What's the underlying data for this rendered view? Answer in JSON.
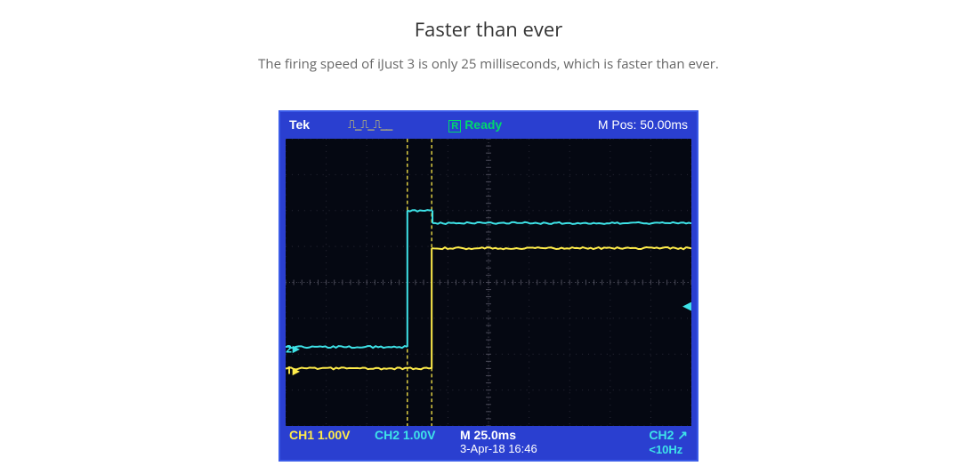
{
  "heading": "Faster than ever",
  "subtext": "The firing speed of iJust 3 is only 25 milliseconds, which is faster than ever.",
  "scope": {
    "brand": "Tek",
    "wave_glyph": "⎍_⎍_⎍__",
    "ready_r": "R",
    "ready_text": "Ready",
    "mpos": "M Pos: 50.00ms",
    "trigger_marker": "▼",
    "grid": {
      "cols": 10,
      "rows": 8,
      "bg_color": "#050812",
      "grid_color": "#2a2a38",
      "center_color": "#4a4a58"
    },
    "cursors": {
      "a_x_div": 3.0,
      "b_x_div": 3.6,
      "color": "#ffec4a"
    },
    "ch1": {
      "label": "CH1 1.00V",
      "color": "#ffec4a",
      "baseline_div": 6.4,
      "marker_text": "1",
      "segments": [
        {
          "x0_div": 0.0,
          "x1_div": 3.6,
          "y_div": 6.4
        },
        {
          "x0_div": 3.6,
          "x1_div": 10.0,
          "y_div": 3.05
        }
      ],
      "vstep_x_div": 3.6,
      "vstep_y0_div": 6.4,
      "vstep_y1_div": 3.05
    },
    "ch2": {
      "label": "CH2 1.00V",
      "color": "#3ee3e8",
      "baseline_div": 5.8,
      "marker_text": "2",
      "segments": [
        {
          "x0_div": 0.0,
          "x1_div": 3.0,
          "y_div": 5.8
        },
        {
          "x0_div": 3.0,
          "x1_div": 3.62,
          "y_div": 2.0
        },
        {
          "x0_div": 3.62,
          "x1_div": 10.0,
          "y_div": 2.35
        }
      ],
      "vstep_x_div": 3.0,
      "vstep_y0_div": 5.8,
      "vstep_y1_div": 2.0,
      "right_arrow_y_div": 4.6
    },
    "timebase": {
      "line1": "M 25.0ms",
      "line2": "3-Apr-18 16:46"
    },
    "trigger": {
      "line1": "CH2 ↗",
      "line2": "<10Hz"
    }
  },
  "colors": {
    "frame_blue": "#2a3fd0",
    "yellow": "#ffec4a",
    "cyan": "#3ee3e8",
    "green": "#00d86e",
    "heading": "#333333",
    "subtext": "#666666"
  }
}
